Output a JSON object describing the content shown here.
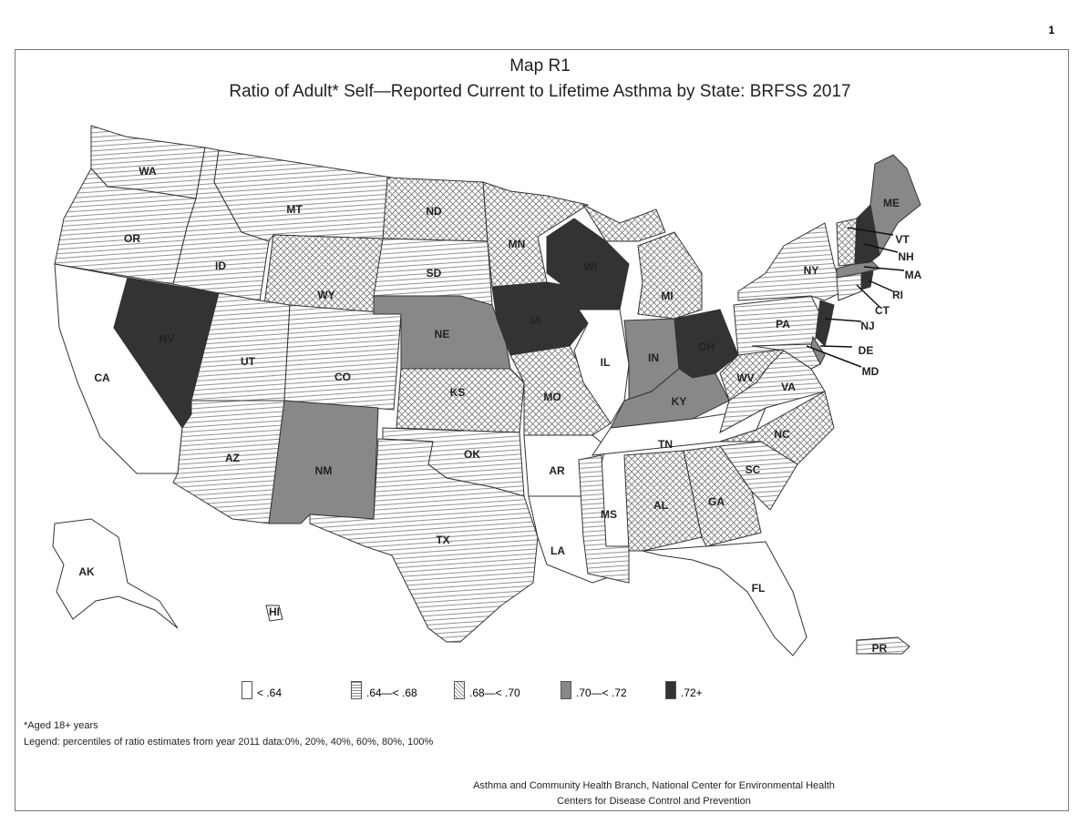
{
  "page_number": "1",
  "title": "Map R1",
  "subtitle": "Ratio of Adult* Self—Reported Current to Lifetime Asthma by State: BRFSS 2017",
  "legend": [
    {
      "label": "< .64",
      "fill": "white"
    },
    {
      "label": ".64—< .68",
      "fill": "horizontal-lines"
    },
    {
      "label": ".68—< .70",
      "fill": "crosshatch"
    },
    {
      "label": ".70—< .72",
      "fill": "#888888"
    },
    {
      "label": ".72+",
      "fill": "#333333"
    }
  ],
  "states": {
    "WA": 1,
    "OR": 1,
    "CA": 0,
    "NV": 4,
    "ID": 1,
    "MT": 1,
    "WY": 2,
    "UT": 1,
    "CO": 1,
    "AZ": 1,
    "NM": 3,
    "ND": 2,
    "SD": 1,
    "NE": 3,
    "KS": 2,
    "OK": 1,
    "TX": 1,
    "MN": 2,
    "IA": 4,
    "MO": 2,
    "AR": 0,
    "LA": 0,
    "WI": 4,
    "IL": 0,
    "MI": 2,
    "IN": 3,
    "OH": 4,
    "KY": 3,
    "TN": 0,
    "MS": 1,
    "AL": 2,
    "GA": 2,
    "FL": 0,
    "SC": 1,
    "NC": 2,
    "VA": 1,
    "WV": 2,
    "PA": 1,
    "NY": 1,
    "MD": 1,
    "DE": 3,
    "NJ": 4,
    "CT": 1,
    "RI": 4,
    "MA": 3,
    "VT": 2,
    "NH": 4,
    "ME": 3,
    "AK": 0,
    "HI": 0,
    "PR": 1
  },
  "footnote": "*Aged 18+ years",
  "legend_note": "Legend: percentiles of ratio estimates from year 2011 data:0%, 20%, 40%, 60%, 80%, 100%",
  "credit_line1": "Asthma and Community Health Branch, National Center for Environmental Health",
  "credit_line2": "Centers for Disease Control and Prevention"
}
